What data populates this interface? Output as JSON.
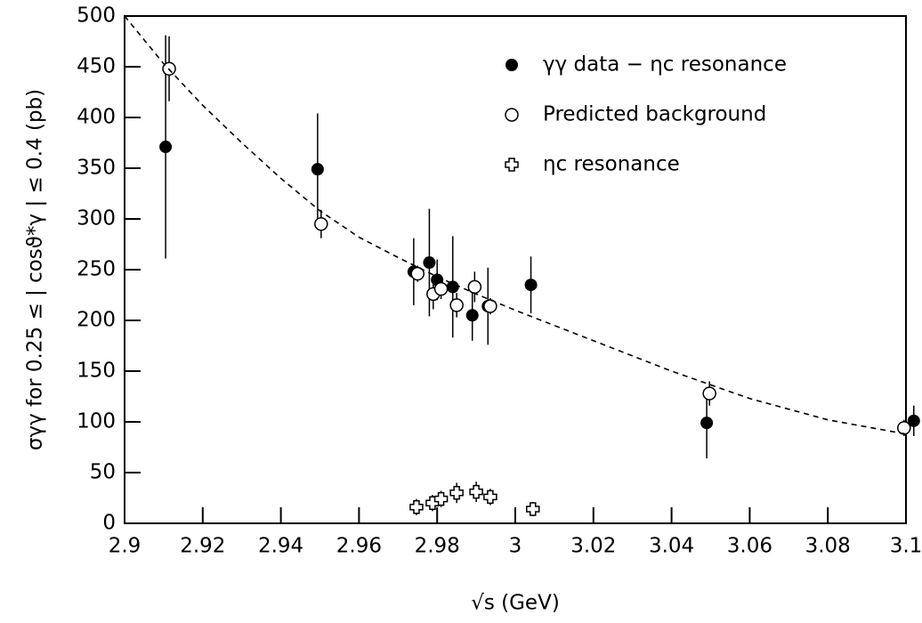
{
  "chart_data": {
    "type": "scatter",
    "xlabel": "√s (GeV)",
    "ylabel": "σγγ for 0.25 ≤ | cosϑ*γ | ≤ 0.4  (pb)",
    "xlim": [
      2.9,
      3.1
    ],
    "ylim": [
      0,
      500
    ],
    "xticks": [
      2.9,
      2.92,
      2.94,
      2.96,
      2.98,
      3,
      3.02,
      3.04,
      3.06,
      3.08,
      3.1
    ],
    "yticks": [
      0,
      50,
      100,
      150,
      200,
      250,
      300,
      350,
      400,
      450,
      500
    ],
    "legend": "top-right",
    "series": [
      {
        "name": "γγ data − ηc resonance",
        "marker": "filled-circle",
        "color": "#000000",
        "x": [
          2.9105,
          2.9494,
          2.974,
          2.978,
          2.98,
          2.984,
          2.989,
          2.993,
          3.004,
          3.049,
          3.102
        ],
        "values": [
          371,
          349,
          248,
          257,
          240,
          233,
          205,
          214,
          235,
          99,
          101
        ],
        "errors": [
          110,
          55,
          33,
          53,
          20,
          50,
          25,
          38,
          28,
          35,
          15
        ]
      },
      {
        "name": "Predicted background",
        "marker": "open-circle",
        "color": "#000000",
        "x": [
          2.9114,
          2.9503,
          2.975,
          2.979,
          2.981,
          2.985,
          2.9896,
          2.9936,
          3.0497,
          3.0995
        ],
        "values": [
          448,
          295,
          246,
          226,
          231,
          215,
          233,
          214,
          128,
          94
        ],
        "errors": [
          32,
          14,
          8,
          15,
          10,
          12,
          15,
          8,
          12,
          8
        ]
      },
      {
        "name": "ηc resonance",
        "marker": "cross",
        "color": "#000000",
        "x": [
          2.9747,
          2.9788,
          2.981,
          2.985,
          2.99,
          2.9936,
          3.0045
        ],
        "values": [
          16,
          20,
          24,
          30,
          31,
          26,
          14
        ],
        "errors": [
          8,
          8,
          8,
          10,
          10,
          8,
          7
        ]
      },
      {
        "marker": "dashed-line",
        "color": "#000000",
        "x": [
          2.9,
          2.91,
          2.92,
          2.93,
          2.94,
          2.95,
          2.96,
          2.97,
          2.98,
          2.99,
          3.0,
          3.02,
          3.04,
          3.06,
          3.08,
          3.1
        ],
        "values": [
          500,
          453,
          412,
          375,
          340,
          308,
          282,
          262,
          243,
          226,
          210,
          180,
          150,
          123,
          102,
          88
        ]
      }
    ]
  }
}
